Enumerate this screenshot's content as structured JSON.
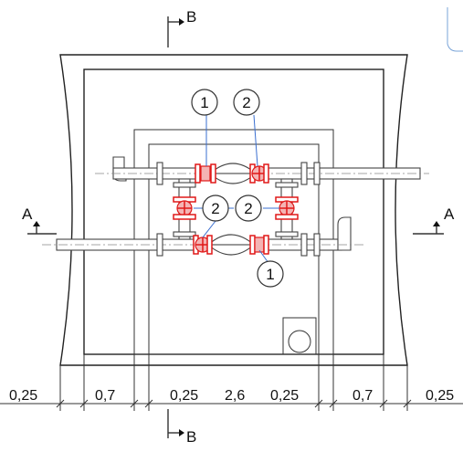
{
  "section_marks": {
    "top": "B",
    "bottom": "B",
    "left": "A",
    "right": "A"
  },
  "callouts": [
    {
      "id": "c1-top",
      "label": "1"
    },
    {
      "id": "c2-top",
      "label": "2"
    },
    {
      "id": "c2-left",
      "label": "2"
    },
    {
      "id": "c2-right",
      "label": "2"
    },
    {
      "id": "c1-bottom",
      "label": "1"
    }
  ],
  "dimensions": [
    "0,25",
    "0,7",
    "0,25",
    "2,6",
    "0,25",
    "0,7",
    "0,25"
  ],
  "colors": {
    "valve": "#e01818",
    "leader": "#3a6fd0",
    "line": "#222222"
  }
}
